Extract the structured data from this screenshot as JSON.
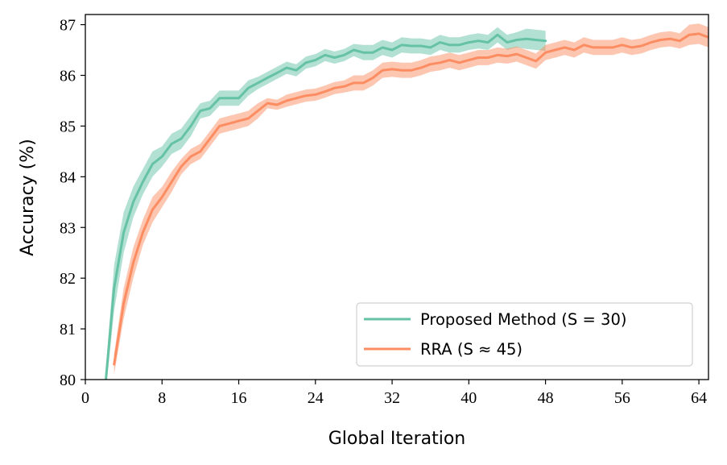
{
  "chart_data": {
    "type": "line",
    "xlabel": "Global Iteration",
    "ylabel": "Accuracy (%)",
    "xlim": [
      0,
      65
    ],
    "ylim": [
      80,
      87.2
    ],
    "xticks": [
      0,
      8,
      16,
      24,
      32,
      40,
      48,
      56,
      64
    ],
    "yticks": [
      80,
      81,
      82,
      83,
      84,
      85,
      86,
      87
    ],
    "grid": false,
    "legend_position": "bottom-right",
    "series": [
      {
        "name": "Proposed Method (S = 30)",
        "color": "#66c2a5",
        "x": [
          2,
          3,
          4,
          5,
          6,
          7,
          8,
          9,
          10,
          11,
          12,
          13,
          14,
          15,
          16,
          17,
          18,
          19,
          20,
          21,
          22,
          23,
          24,
          25,
          26,
          27,
          28,
          29,
          30,
          31,
          32,
          33,
          34,
          35,
          36,
          37,
          38,
          39,
          40,
          41,
          42,
          43,
          44,
          45,
          46,
          47,
          48
        ],
        "y": [
          79.7,
          81.8,
          82.9,
          83.5,
          83.9,
          84.25,
          84.4,
          84.65,
          84.75,
          85.0,
          85.3,
          85.35,
          85.55,
          85.55,
          85.55,
          85.75,
          85.85,
          85.95,
          86.05,
          86.15,
          86.1,
          86.25,
          86.3,
          86.4,
          86.35,
          86.4,
          86.5,
          86.45,
          86.45,
          86.55,
          86.5,
          86.6,
          86.58,
          86.58,
          86.55,
          86.65,
          86.6,
          86.6,
          86.65,
          86.68,
          86.65,
          86.8,
          86.65,
          86.7,
          86.72,
          86.7,
          86.68
        ],
        "band": [
          0.2,
          0.45,
          0.4,
          0.3,
          0.25,
          0.25,
          0.2,
          0.2,
          0.2,
          0.2,
          0.15,
          0.15,
          0.15,
          0.15,
          0.15,
          0.15,
          0.12,
          0.12,
          0.12,
          0.12,
          0.12,
          0.12,
          0.12,
          0.12,
          0.12,
          0.12,
          0.12,
          0.15,
          0.15,
          0.15,
          0.15,
          0.15,
          0.15,
          0.15,
          0.15,
          0.15,
          0.15,
          0.15,
          0.15,
          0.15,
          0.15,
          0.15,
          0.15,
          0.15,
          0.2,
          0.2,
          0.2
        ]
      },
      {
        "name": "RRA (S ≈ 45)",
        "color": "#fc8d62",
        "x": [
          3,
          4,
          5,
          6,
          7,
          8,
          9,
          10,
          11,
          12,
          13,
          14,
          15,
          16,
          17,
          18,
          19,
          20,
          21,
          22,
          23,
          24,
          25,
          26,
          27,
          28,
          29,
          30,
          31,
          32,
          33,
          34,
          35,
          36,
          37,
          38,
          39,
          40,
          41,
          42,
          43,
          44,
          45,
          46,
          47,
          48,
          49,
          50,
          51,
          52,
          53,
          54,
          55,
          56,
          57,
          58,
          59,
          60,
          61,
          62,
          63,
          64,
          65
        ],
        "y": [
          80.3,
          81.5,
          82.3,
          82.9,
          83.35,
          83.6,
          83.9,
          84.2,
          84.4,
          84.5,
          84.75,
          85.0,
          85.05,
          85.1,
          85.15,
          85.3,
          85.45,
          85.42,
          85.5,
          85.55,
          85.6,
          85.62,
          85.68,
          85.75,
          85.78,
          85.85,
          85.85,
          85.95,
          86.1,
          86.12,
          86.1,
          86.1,
          86.15,
          86.22,
          86.25,
          86.3,
          86.25,
          86.3,
          86.35,
          86.35,
          86.4,
          86.38,
          86.42,
          86.35,
          86.28,
          86.45,
          86.5,
          86.55,
          86.5,
          86.6,
          86.55,
          86.55,
          86.55,
          86.6,
          86.55,
          86.58,
          86.65,
          86.7,
          86.72,
          86.68,
          86.8,
          86.82,
          86.75
        ],
        "band": [
          0.2,
          0.3,
          0.3,
          0.25,
          0.25,
          0.2,
          0.2,
          0.15,
          0.15,
          0.15,
          0.15,
          0.15,
          0.15,
          0.15,
          0.15,
          0.15,
          0.1,
          0.1,
          0.12,
          0.12,
          0.12,
          0.12,
          0.12,
          0.12,
          0.12,
          0.15,
          0.15,
          0.15,
          0.15,
          0.15,
          0.15,
          0.15,
          0.15,
          0.15,
          0.15,
          0.15,
          0.15,
          0.15,
          0.15,
          0.15,
          0.15,
          0.15,
          0.15,
          0.15,
          0.15,
          0.15,
          0.15,
          0.15,
          0.15,
          0.15,
          0.15,
          0.15,
          0.15,
          0.15,
          0.15,
          0.15,
          0.15,
          0.15,
          0.15,
          0.15,
          0.2,
          0.2,
          0.2
        ]
      }
    ]
  }
}
